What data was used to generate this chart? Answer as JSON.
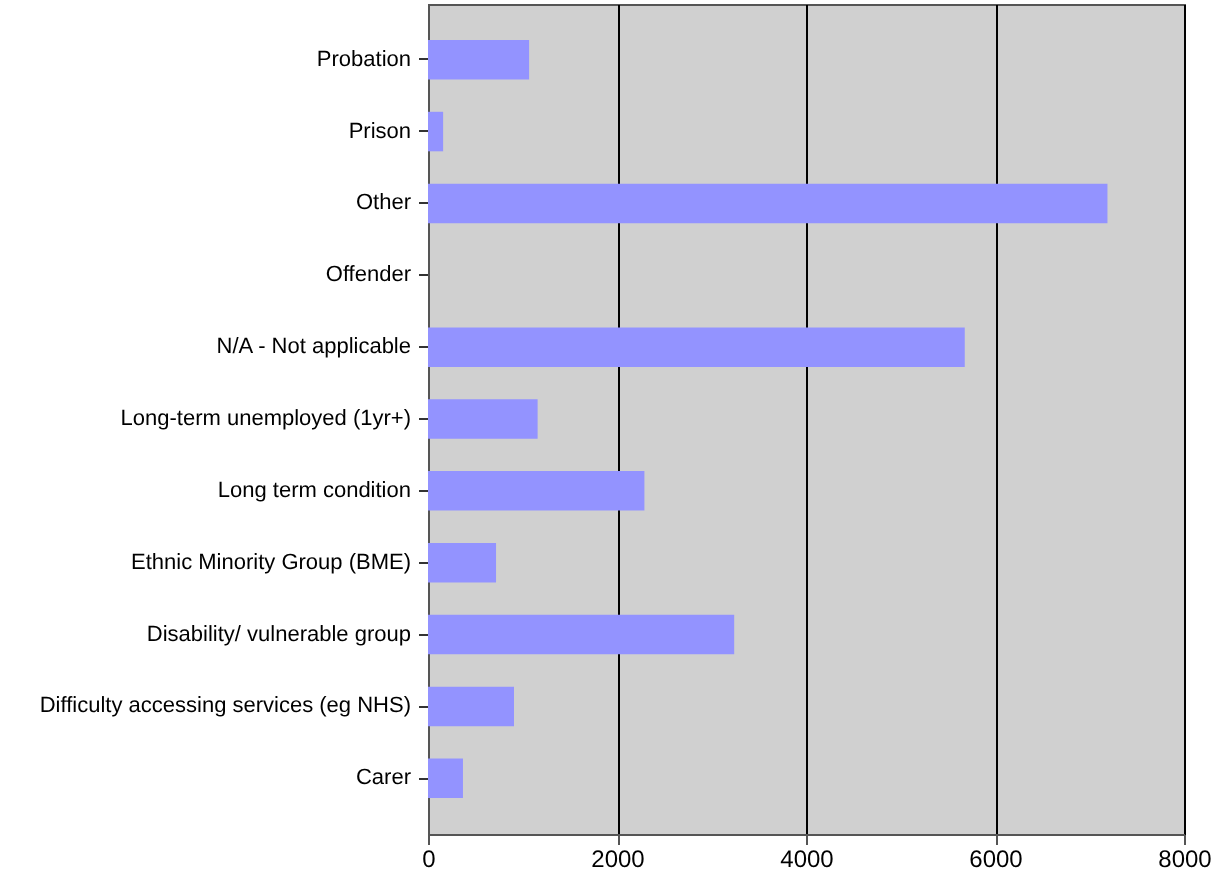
{
  "chart_data": {
    "type": "bar",
    "orientation": "horizontal",
    "categories": [
      "Probation",
      "Prison",
      "Other",
      "Offender",
      "N/A - Not applicable",
      "Long-term unemployed (1yr+)",
      "Long term condition",
      "Ethnic Minority Group (BME)",
      "Disability/ vulnerable group",
      "Difficulty accessing services (eg NHS)",
      "Carer"
    ],
    "values": [
      1070,
      160,
      7190,
      0,
      5680,
      1160,
      2290,
      720,
      3240,
      910,
      370
    ],
    "color": "#9393ff",
    "xlim": [
      0,
      8000
    ],
    "xticks": [
      0,
      2000,
      4000,
      6000,
      8000
    ],
    "grid": "x"
  }
}
